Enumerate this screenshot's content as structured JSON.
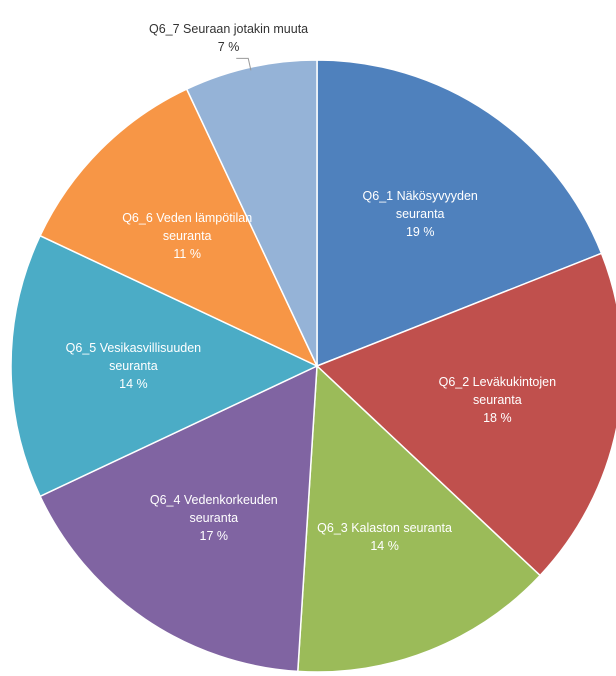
{
  "chart_data": {
    "type": "pie",
    "categories": [
      "Q6_1 Näkösyvyyden seuranta",
      "Q6_2 Leväkukintojen seuranta",
      "Q6_3 Kalaston seuranta",
      "Q6_4 Vedenkorkeuden seuranta",
      "Q6_5 Vesikasvillisuuden seuranta",
      "Q6_6 Veden lämpötilan seuranta",
      "Q6_7 Seuraan jotakin muuta"
    ],
    "values": [
      19,
      18,
      14,
      17,
      14,
      11,
      7
    ],
    "value_labels": [
      "19 %",
      "18 %",
      "14 %",
      "17 %",
      "14 %",
      "11 %",
      "7 %"
    ],
    "colors": [
      "#4f81bd",
      "#c0504d",
      "#9bbb59",
      "#8064a2",
      "#4bacc6",
      "#f79646",
      "#95b3d7"
    ]
  }
}
